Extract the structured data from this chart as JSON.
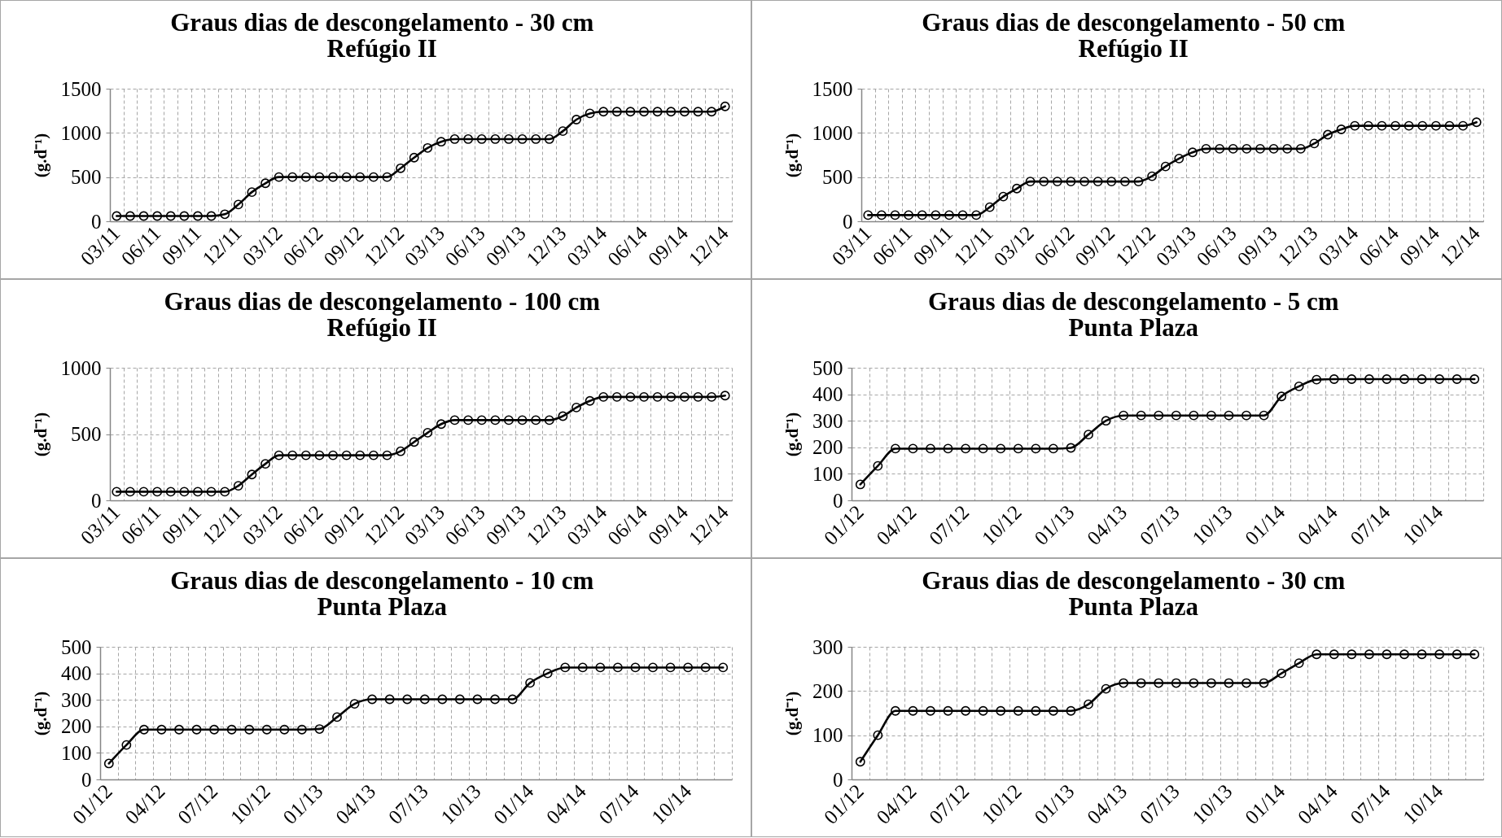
{
  "chart_data": [
    {
      "type": "line",
      "title": "Graus dias de descongelamento - 30 cm",
      "subtitle": "Refúgio II",
      "ylabel": "(g.d⁻¹)",
      "categories": [
        "03/11",
        null,
        null,
        "06/11",
        null,
        null,
        "09/11",
        null,
        null,
        "12/11",
        null,
        null,
        "03/12",
        null,
        null,
        "06/12",
        null,
        null,
        "09/12",
        null,
        null,
        "12/12",
        null,
        null,
        "03/13",
        null,
        null,
        "06/13",
        null,
        null,
        "09/13",
        null,
        null,
        "12/13",
        null,
        null,
        "03/14",
        null,
        null,
        "06/14",
        null,
        null,
        "09/14",
        null,
        null,
        "12/14"
      ],
      "series": [
        {
          "color": "#000000",
          "values": [
            60,
            60,
            60,
            60,
            60,
            60,
            60,
            60,
            80,
            190,
            330,
            430,
            500,
            500,
            500,
            500,
            500,
            500,
            500,
            500,
            500,
            600,
            720,
            830,
            900,
            930,
            930,
            930,
            930,
            930,
            930,
            930,
            930,
            1020,
            1150,
            1220,
            1240,
            1240,
            1240,
            1240,
            1240,
            1240,
            1240,
            1240,
            1240,
            1300
          ]
        }
      ],
      "ylim": [
        0,
        1500
      ],
      "yticks": [
        0,
        500,
        1000,
        1500
      ],
      "grid": true,
      "marker": "circle",
      "line_style": "solid"
    },
    {
      "type": "line",
      "title": "Graus dias de descongelamento - 50 cm",
      "subtitle": "Refúgio II",
      "ylabel": "(g.d⁻¹)",
      "categories": [
        "03/11",
        null,
        null,
        "06/11",
        null,
        null,
        "09/11",
        null,
        null,
        "12/11",
        null,
        null,
        "03/12",
        null,
        null,
        "06/12",
        null,
        null,
        "09/12",
        null,
        null,
        "12/12",
        null,
        null,
        "03/13",
        null,
        null,
        "06/13",
        null,
        null,
        "09/13",
        null,
        null,
        "12/13",
        null,
        null,
        "03/14",
        null,
        null,
        "06/14",
        null,
        null,
        "09/14",
        null,
        null,
        "12/14"
      ],
      "series": [
        {
          "color": "#000000",
          "values": [
            70,
            70,
            70,
            70,
            70,
            70,
            70,
            70,
            70,
            160,
            280,
            370,
            450,
            450,
            450,
            450,
            450,
            450,
            450,
            450,
            450,
            510,
            620,
            710,
            780,
            820,
            820,
            820,
            820,
            820,
            820,
            820,
            820,
            880,
            980,
            1040,
            1080,
            1080,
            1080,
            1080,
            1080,
            1080,
            1080,
            1080,
            1080,
            1120
          ]
        }
      ],
      "ylim": [
        0,
        1500
      ],
      "yticks": [
        0,
        500,
        1000,
        1500
      ],
      "grid": true,
      "marker": "circle",
      "line_style": "solid"
    },
    {
      "type": "line",
      "title": "Graus dias de descongelamento - 100 cm",
      "subtitle": "Refúgio II",
      "ylabel": "(g.d⁻¹)",
      "categories": [
        "03/11",
        null,
        null,
        "06/11",
        null,
        null,
        "09/11",
        null,
        null,
        "12/11",
        null,
        null,
        "03/12",
        null,
        null,
        "06/12",
        null,
        null,
        "09/12",
        null,
        null,
        "12/12",
        null,
        null,
        "03/13",
        null,
        null,
        "06/13",
        null,
        null,
        "09/13",
        null,
        null,
        "12/13",
        null,
        null,
        "03/14",
        null,
        null,
        "06/14",
        null,
        null,
        "09/14",
        null,
        null,
        "12/14"
      ],
      "series": [
        {
          "color": "#000000",
          "values": [
            65,
            65,
            65,
            65,
            65,
            65,
            65,
            65,
            65,
            110,
            195,
            275,
            340,
            340,
            340,
            340,
            340,
            340,
            340,
            340,
            340,
            370,
            440,
            510,
            575,
            605,
            605,
            605,
            605,
            605,
            605,
            605,
            605,
            635,
            700,
            750,
            780,
            780,
            780,
            780,
            780,
            780,
            780,
            780,
            780,
            790
          ]
        }
      ],
      "ylim": [
        0,
        1000
      ],
      "yticks": [
        0,
        500,
        1000
      ],
      "grid": true,
      "marker": "circle",
      "line_style": "solid"
    },
    {
      "type": "line",
      "title": "Graus dias de descongelamento - 5 cm",
      "subtitle": "Punta Plaza",
      "ylabel": "(g.d⁻¹)",
      "categories": [
        "01/12",
        null,
        null,
        "04/12",
        null,
        null,
        "07/12",
        null,
        null,
        "10/12",
        null,
        null,
        "01/13",
        null,
        null,
        "04/13",
        null,
        null,
        "07/13",
        null,
        null,
        "10/13",
        null,
        null,
        "01/14",
        null,
        null,
        "04/14",
        null,
        null,
        "07/14",
        null,
        null,
        "10/14",
        null,
        null
      ],
      "series": [
        {
          "color": "#000000",
          "values": [
            60,
            130,
            195,
            195,
            195,
            195,
            195,
            195,
            195,
            195,
            195,
            195,
            198,
            248,
            300,
            320,
            320,
            320,
            320,
            320,
            320,
            320,
            320,
            320,
            392,
            430,
            455,
            457,
            457,
            457,
            457,
            457,
            457,
            457,
            457,
            457
          ]
        }
      ],
      "ylim": [
        0,
        500
      ],
      "yticks": [
        0,
        100,
        200,
        300,
        400,
        500
      ],
      "grid": true,
      "marker": "circle",
      "line_style": "solid"
    },
    {
      "type": "line",
      "title": "Graus dias de descongelamento - 10 cm",
      "subtitle": "Punta Plaza",
      "ylabel": "(g.d⁻¹)",
      "categories": [
        "01/12",
        null,
        null,
        "04/12",
        null,
        null,
        "07/12",
        null,
        null,
        "10/12",
        null,
        null,
        "01/13",
        null,
        null,
        "04/13",
        null,
        null,
        "07/13",
        null,
        null,
        "10/13",
        null,
        null,
        "01/14",
        null,
        null,
        "04/14",
        null,
        null,
        "07/14",
        null,
        null,
        "10/14",
        null,
        null
      ],
      "series": [
        {
          "color": "#000000",
          "values": [
            60,
            130,
            188,
            188,
            188,
            188,
            188,
            188,
            188,
            188,
            188,
            188,
            190,
            235,
            285,
            302,
            302,
            302,
            302,
            302,
            302,
            302,
            302,
            302,
            364,
            400,
            422,
            422,
            422,
            422,
            422,
            422,
            422,
            422,
            422,
            422
          ]
        }
      ],
      "ylim": [
        0,
        500
      ],
      "yticks": [
        0,
        100,
        200,
        300,
        400,
        500
      ],
      "grid": true,
      "marker": "circle",
      "line_style": "solid"
    },
    {
      "type": "line",
      "title": "Graus dias de descongelamento - 30 cm",
      "subtitle": "Punta Plaza",
      "ylabel": "(g.d⁻¹)",
      "categories": [
        "01/12",
        null,
        null,
        "04/12",
        null,
        null,
        "07/12",
        null,
        null,
        "10/12",
        null,
        null,
        "01/13",
        null,
        null,
        "04/13",
        null,
        null,
        "07/13",
        null,
        null,
        "10/13",
        null,
        null,
        "01/14",
        null,
        null,
        "04/14",
        null,
        null,
        "07/14",
        null,
        null,
        "10/14",
        null,
        null
      ],
      "series": [
        {
          "color": "#000000",
          "values": [
            40,
            100,
            155,
            155,
            155,
            155,
            155,
            155,
            155,
            155,
            155,
            155,
            155,
            170,
            205,
            218,
            218,
            218,
            218,
            218,
            218,
            218,
            218,
            218,
            240,
            263,
            283,
            283,
            283,
            283,
            283,
            283,
            283,
            283,
            283,
            283
          ]
        }
      ],
      "ylim": [
        0,
        300
      ],
      "yticks": [
        0,
        100,
        200,
        300
      ],
      "grid": true,
      "marker": "circle",
      "line_style": "solid"
    }
  ]
}
